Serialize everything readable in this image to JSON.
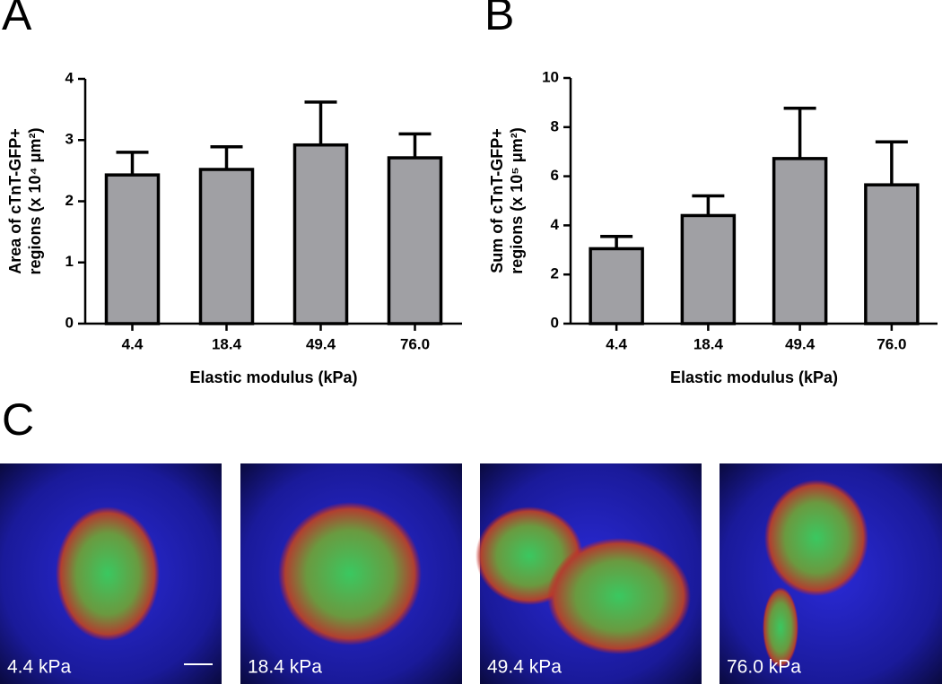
{
  "panel_labels": [
    "A",
    "B",
    "C"
  ],
  "chart_data": [
    {
      "type": "bar",
      "y_label": [
        "Area of cTnT-GFP+",
        "regions (x 10⁴ μm²)"
      ],
      "x_label": "Elastic modulus (kPa)",
      "categories": [
        "4.4",
        "18.4",
        "49.4",
        "76.0"
      ],
      "values": [
        2.43,
        2.52,
        2.92,
        2.71
      ],
      "errors": [
        0.37,
        0.37,
        0.7,
        0.39
      ],
      "color": "#a0a0a4",
      "ylim": [
        0,
        4
      ],
      "yticks": [
        0,
        1,
        2,
        3,
        4
      ]
    },
    {
      "type": "bar",
      "y_label": [
        "Sum of cTnT-GFP+",
        "regions (x 10⁵ μm²)"
      ],
      "x_label": "Elastic modulus (kPa)",
      "categories": [
        "4.4",
        "18.4",
        "49.4",
        "76.0"
      ],
      "values": [
        3.05,
        4.4,
        6.72,
        5.65
      ],
      "errors": [
        0.5,
        0.8,
        2.05,
        1.75
      ],
      "color": "#a0a0a4",
      "ylim": [
        0,
        10
      ],
      "yticks": [
        0,
        2,
        4,
        6,
        8,
        10
      ]
    }
  ],
  "images": [
    {
      "label": "4.4 kPa"
    },
    {
      "label": "18.4 kPa"
    },
    {
      "label": "49.4 kPa"
    },
    {
      "label": "76.0 kPa"
    }
  ]
}
